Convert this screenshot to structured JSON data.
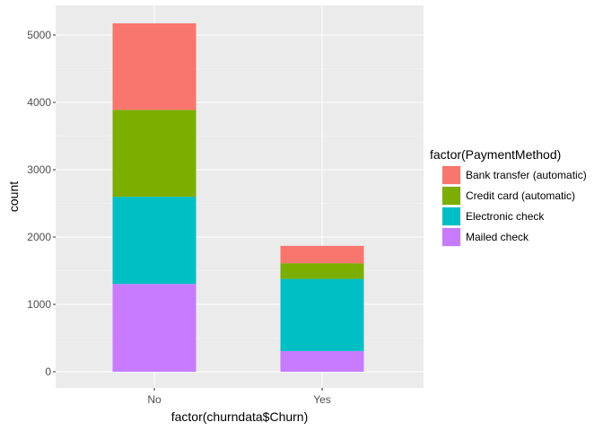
{
  "chart_data": {
    "type": "bar",
    "stacked": true,
    "categories": [
      "No",
      "Yes"
    ],
    "xlabel": "factor(churndata$Churn)",
    "ylabel": "count",
    "ylim": [
      0,
      5450
    ],
    "yticks": [
      0,
      1000,
      2000,
      3000,
      4000,
      5000
    ],
    "grid": true,
    "legend": {
      "title": "factor(PaymentMethod)",
      "position": "right"
    },
    "series": [
      {
        "name": "Bank transfer (automatic)",
        "color": "#F8766D",
        "values": [
          1286,
          258
        ]
      },
      {
        "name": "Credit card (automatic)",
        "color": "#7CAE00",
        "values": [
          1290,
          232
        ]
      },
      {
        "name": "Electronic check",
        "color": "#00BFC4",
        "values": [
          1294,
          1071
        ]
      },
      {
        "name": "Mailed check",
        "color": "#C77CFF",
        "values": [
          1304,
          308
        ]
      }
    ]
  }
}
